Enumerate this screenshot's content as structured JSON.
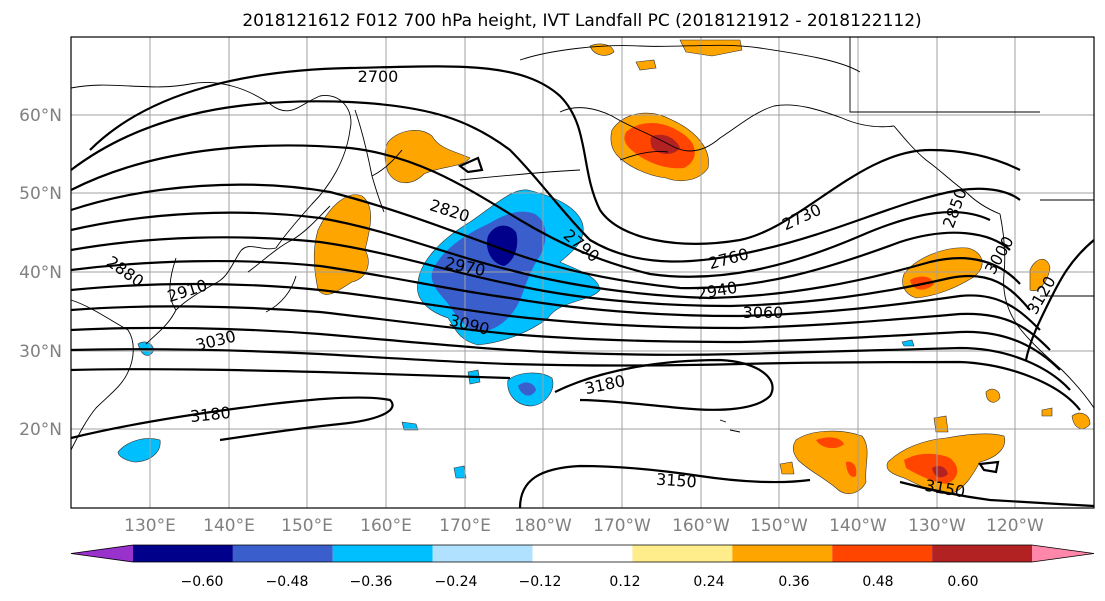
{
  "title": "2018121612 F012 700 hPa height, IVT Landfall PC (2018121912 - 2018122112)",
  "lat_labels": [
    "60°N",
    "50°N",
    "40°N",
    "30°N",
    "20°N"
  ],
  "lon_labels": [
    "130°E",
    "140°E",
    "150°E",
    "160°E",
    "170°E",
    "180°W",
    "170°W",
    "160°W",
    "150°W",
    "140°W",
    "130°W",
    "120°W"
  ],
  "contour_labels": [
    "2700",
    "2820",
    "2880",
    "2910",
    "2970",
    "2790",
    "3030",
    "3090",
    "2760",
    "2730",
    "2940",
    "3060",
    "3180",
    "3180",
    "3150",
    "3150",
    "2850",
    "3000",
    "3120"
  ],
  "colorbar": {
    "colors": [
      "#9932cc",
      "#00008b",
      "#3a5fcd",
      "#00bfff",
      "#b0e2ff",
      "#ffffff",
      "#ffec8b",
      "#ffa500",
      "#ff4500",
      "#b22222",
      "#ff88aa"
    ],
    "tick_labels": [
      "−0.60",
      "−0.48",
      "−0.36",
      "−0.24",
      "−0.12",
      "0.12",
      "0.24",
      "0.36",
      "0.48",
      "0.60"
    ]
  },
  "colors": {
    "neg_strong": "#00008b",
    "neg_mid": "#3a5fcd",
    "neg_light": "#00bfff",
    "pos_light": "#ffec8b",
    "pos_mid": "#ffa500",
    "pos_strong": "#ff4500",
    "pos_max": "#b22222"
  }
}
